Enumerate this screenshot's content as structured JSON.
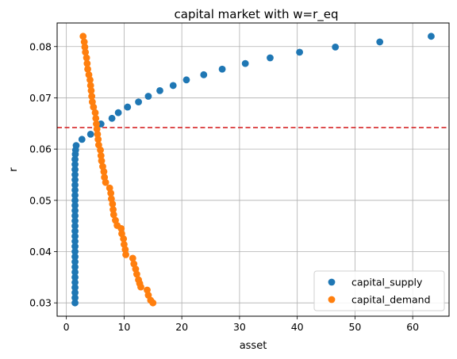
{
  "chart_data": {
    "type": "scatter",
    "title": "capital market with w=r_eq",
    "xlabel": "asset",
    "ylabel": "r",
    "xlim": [
      -1.6,
      66.3
    ],
    "ylim": [
      0.0274,
      0.0846
    ],
    "xticks": [
      0,
      10,
      20,
      30,
      40,
      50,
      60
    ],
    "yticks": [
      0.03,
      0.04,
      0.05,
      0.06,
      0.07,
      0.08
    ],
    "ytick_labels": [
      "0.03",
      "0.04",
      "0.05",
      "0.06",
      "0.07",
      "0.08"
    ],
    "grid": true,
    "legend_position": "lower-right",
    "hline": {
      "y": 0.0642,
      "color": "#d62728",
      "style": "dashed"
    },
    "series": [
      {
        "name": "capital_supply",
        "color": "#1f77b4",
        "points": [
          [
            1.5,
            0.03
          ],
          [
            1.5,
            0.031
          ],
          [
            1.5,
            0.032
          ],
          [
            1.5,
            0.033
          ],
          [
            1.5,
            0.034
          ],
          [
            1.5,
            0.035
          ],
          [
            1.5,
            0.036
          ],
          [
            1.5,
            0.037
          ],
          [
            1.5,
            0.038
          ],
          [
            1.5,
            0.039
          ],
          [
            1.5,
            0.04
          ],
          [
            1.5,
            0.041
          ],
          [
            1.5,
            0.042
          ],
          [
            1.5,
            0.043
          ],
          [
            1.5,
            0.044
          ],
          [
            1.5,
            0.045
          ],
          [
            1.5,
            0.046
          ],
          [
            1.5,
            0.047
          ],
          [
            1.5,
            0.048
          ],
          [
            1.5,
            0.049
          ],
          [
            1.5,
            0.05
          ],
          [
            1.5,
            0.051
          ],
          [
            1.5,
            0.052
          ],
          [
            1.5,
            0.053
          ],
          [
            1.5,
            0.054
          ],
          [
            1.5,
            0.055
          ],
          [
            1.5,
            0.056
          ],
          [
            1.5,
            0.057
          ],
          [
            1.5,
            0.058
          ],
          [
            1.55,
            0.059
          ],
          [
            1.6,
            0.0598
          ],
          [
            1.7,
            0.0607
          ],
          [
            2.7,
            0.0619
          ],
          [
            4.2,
            0.0629
          ],
          [
            6.0,
            0.0649
          ],
          [
            7.9,
            0.066
          ],
          [
            9.0,
            0.0671
          ],
          [
            10.6,
            0.0682
          ],
          [
            12.5,
            0.0692
          ],
          [
            14.2,
            0.0703
          ],
          [
            16.2,
            0.0714
          ],
          [
            18.5,
            0.0724
          ],
          [
            20.8,
            0.0735
          ],
          [
            23.8,
            0.0745
          ],
          [
            27.0,
            0.0756
          ],
          [
            31.0,
            0.0767
          ],
          [
            35.3,
            0.0778
          ],
          [
            40.4,
            0.0789
          ],
          [
            46.6,
            0.0799
          ],
          [
            54.3,
            0.0809
          ],
          [
            63.2,
            0.082
          ]
        ]
      },
      {
        "name": "capital_demand",
        "color": "#ff7f0e",
        "points": [
          [
            2.9,
            0.082
          ],
          [
            3.1,
            0.0809
          ],
          [
            3.2,
            0.0799
          ],
          [
            3.3,
            0.0789
          ],
          [
            3.5,
            0.0778
          ],
          [
            3.6,
            0.0767
          ],
          [
            3.7,
            0.0756
          ],
          [
            3.9,
            0.0745
          ],
          [
            4.1,
            0.0735
          ],
          [
            4.2,
            0.0724
          ],
          [
            4.3,
            0.0714
          ],
          [
            4.4,
            0.0703
          ],
          [
            4.5,
            0.0692
          ],
          [
            4.7,
            0.0682
          ],
          [
            5.0,
            0.0671
          ],
          [
            5.1,
            0.066
          ],
          [
            5.2,
            0.0649
          ],
          [
            5.3,
            0.0639
          ],
          [
            5.4,
            0.0629
          ],
          [
            5.5,
            0.0619
          ],
          [
            5.6,
            0.0608
          ],
          [
            5.9,
            0.0598
          ],
          [
            6.0,
            0.0587
          ],
          [
            6.1,
            0.0577
          ],
          [
            6.3,
            0.0566
          ],
          [
            6.5,
            0.0556
          ],
          [
            6.6,
            0.0545
          ],
          [
            6.8,
            0.0535
          ],
          [
            7.5,
            0.0524
          ],
          [
            7.7,
            0.0514
          ],
          [
            7.8,
            0.0503
          ],
          [
            8.0,
            0.0493
          ],
          [
            8.1,
            0.0482
          ],
          [
            8.2,
            0.0472
          ],
          [
            8.5,
            0.0461
          ],
          [
            8.8,
            0.0451
          ],
          [
            9.5,
            0.0445
          ],
          [
            9.6,
            0.0435
          ],
          [
            9.9,
            0.0425
          ],
          [
            10.0,
            0.0414
          ],
          [
            10.2,
            0.0404
          ],
          [
            10.3,
            0.0394
          ],
          [
            11.5,
            0.0387
          ],
          [
            11.7,
            0.0376
          ],
          [
            12.0,
            0.0366
          ],
          [
            12.2,
            0.0356
          ],
          [
            12.5,
            0.0345
          ],
          [
            12.7,
            0.0338
          ],
          [
            12.9,
            0.0331
          ],
          [
            14.0,
            0.0325
          ],
          [
            14.2,
            0.0315
          ],
          [
            14.6,
            0.0305
          ],
          [
            15.0,
            0.03
          ]
        ]
      }
    ]
  }
}
